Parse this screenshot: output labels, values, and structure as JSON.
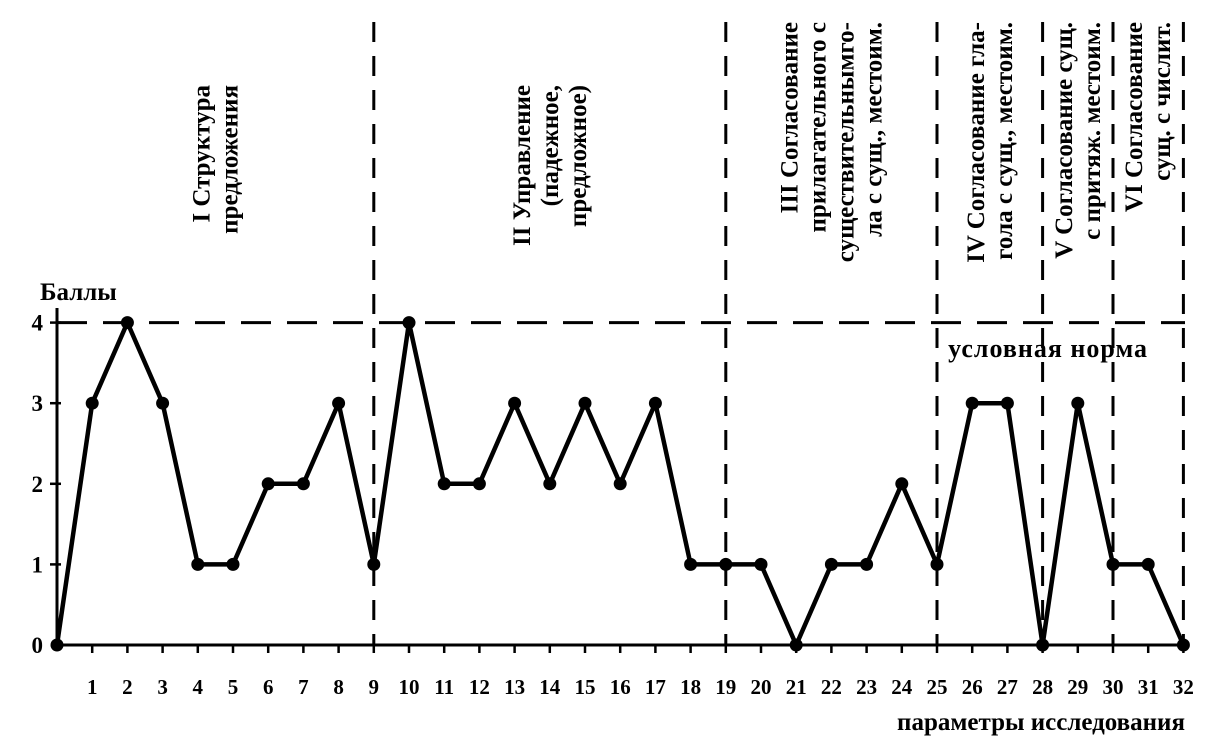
{
  "chart_data": {
    "type": "line",
    "ylabel": "Баллы",
    "xlabel": "параметры исследования",
    "y_ticks": [
      "0",
      "1",
      "2",
      "3",
      "4"
    ],
    "ylim": [
      0,
      4
    ],
    "xlim": [
      0,
      32
    ],
    "x": [
      0,
      1,
      2,
      3,
      4,
      5,
      6,
      7,
      8,
      9,
      10,
      11,
      12,
      13,
      14,
      15,
      16,
      17,
      18,
      19,
      20,
      21,
      22,
      23,
      24,
      25,
      26,
      27,
      28,
      29,
      30,
      31,
      32
    ],
    "x_tick_labels": [
      "1",
      "2",
      "3",
      "4",
      "5",
      "6",
      "7",
      "8",
      "9",
      "10",
      "11",
      "12",
      "13",
      "14",
      "15",
      "16",
      "17",
      "18",
      "19",
      "20",
      "21",
      "22",
      "23",
      "24",
      "25",
      "26",
      "27",
      "28",
      "29",
      "30",
      "31",
      "32"
    ],
    "values": [
      0,
      3,
      4,
      3,
      1,
      1,
      2,
      2,
      3,
      1,
      4,
      2,
      2,
      3,
      2,
      3,
      2,
      3,
      1,
      1,
      1,
      0,
      1,
      1,
      2,
      1,
      3,
      3,
      0,
      3,
      1,
      1,
      0
    ],
    "norm": {
      "value": 4,
      "label": "условная норма"
    },
    "section_boundaries": [
      9,
      19,
      25,
      28,
      30,
      32
    ],
    "sections": [
      {
        "lines": [
          "I Структура",
          "предложения"
        ],
        "from": 0,
        "to": 9
      },
      {
        "lines": [
          "II Управление",
          "(падежное,",
          "предложное)"
        ],
        "from": 9,
        "to": 19
      },
      {
        "lines": [
          "III Согласование",
          "прилагательного с",
          "существительнымго-",
          "ла с сущ., местоим."
        ],
        "from": 19,
        "to": 25
      },
      {
        "lines": [
          "IV Согласование гла-",
          "гола с сущ., местоим."
        ],
        "from": 25,
        "to": 28
      },
      {
        "lines": [
          "V Согласование сущ.",
          "с притяж. местоим."
        ],
        "from": 28,
        "to": 30
      },
      {
        "lines": [
          "VI Согласование",
          "сущ. с числит."
        ],
        "from": 30,
        "to": 32
      }
    ],
    "grid": false,
    "legend": "none"
  }
}
